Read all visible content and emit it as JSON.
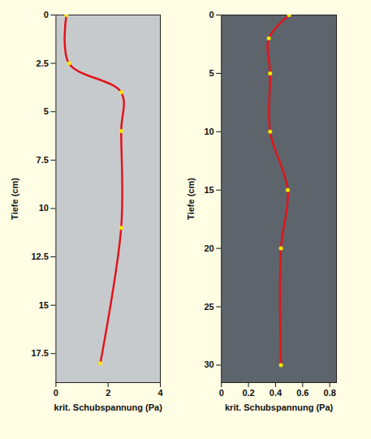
{
  "chart_data": [
    {
      "type": "line",
      "x": [
        0.4,
        0.5,
        2.5,
        2.5,
        2.5,
        1.7
      ],
      "y": [
        0,
        2.5,
        4,
        6,
        11,
        18
      ],
      "x_label": "krit. Schubspannung (Pa)",
      "y_label": "Tiefe (cm)",
      "xlim": [
        0,
        4
      ],
      "xticks": [
        0,
        2,
        4
      ],
      "ylim": [
        0,
        19
      ],
      "yticks": [
        0,
        2.5,
        5,
        7.5,
        10,
        12.5,
        15,
        17.5
      ],
      "color": "#e3141b",
      "marker": "circle",
      "line_style": "solid",
      "grid": false
    },
    {
      "type": "line",
      "x": [
        0.5,
        0.35,
        0.36,
        0.36,
        0.49,
        0.44,
        0.44
      ],
      "y": [
        0,
        2,
        5,
        10,
        15,
        20,
        30
      ],
      "x_label": "krit. Schubspannung (Pa)",
      "y_label": "Tiefe (cm)",
      "xlim": [
        0,
        0.85
      ],
      "xticks": [
        0,
        0.2,
        0.4,
        0.6,
        0.8
      ],
      "ylim": [
        0,
        31.5
      ],
      "yticks": [
        0,
        5,
        10,
        15,
        20,
        25,
        30
      ],
      "color": "#e3141b",
      "marker": "circle",
      "line_style": "solid",
      "grid": false
    }
  ]
}
